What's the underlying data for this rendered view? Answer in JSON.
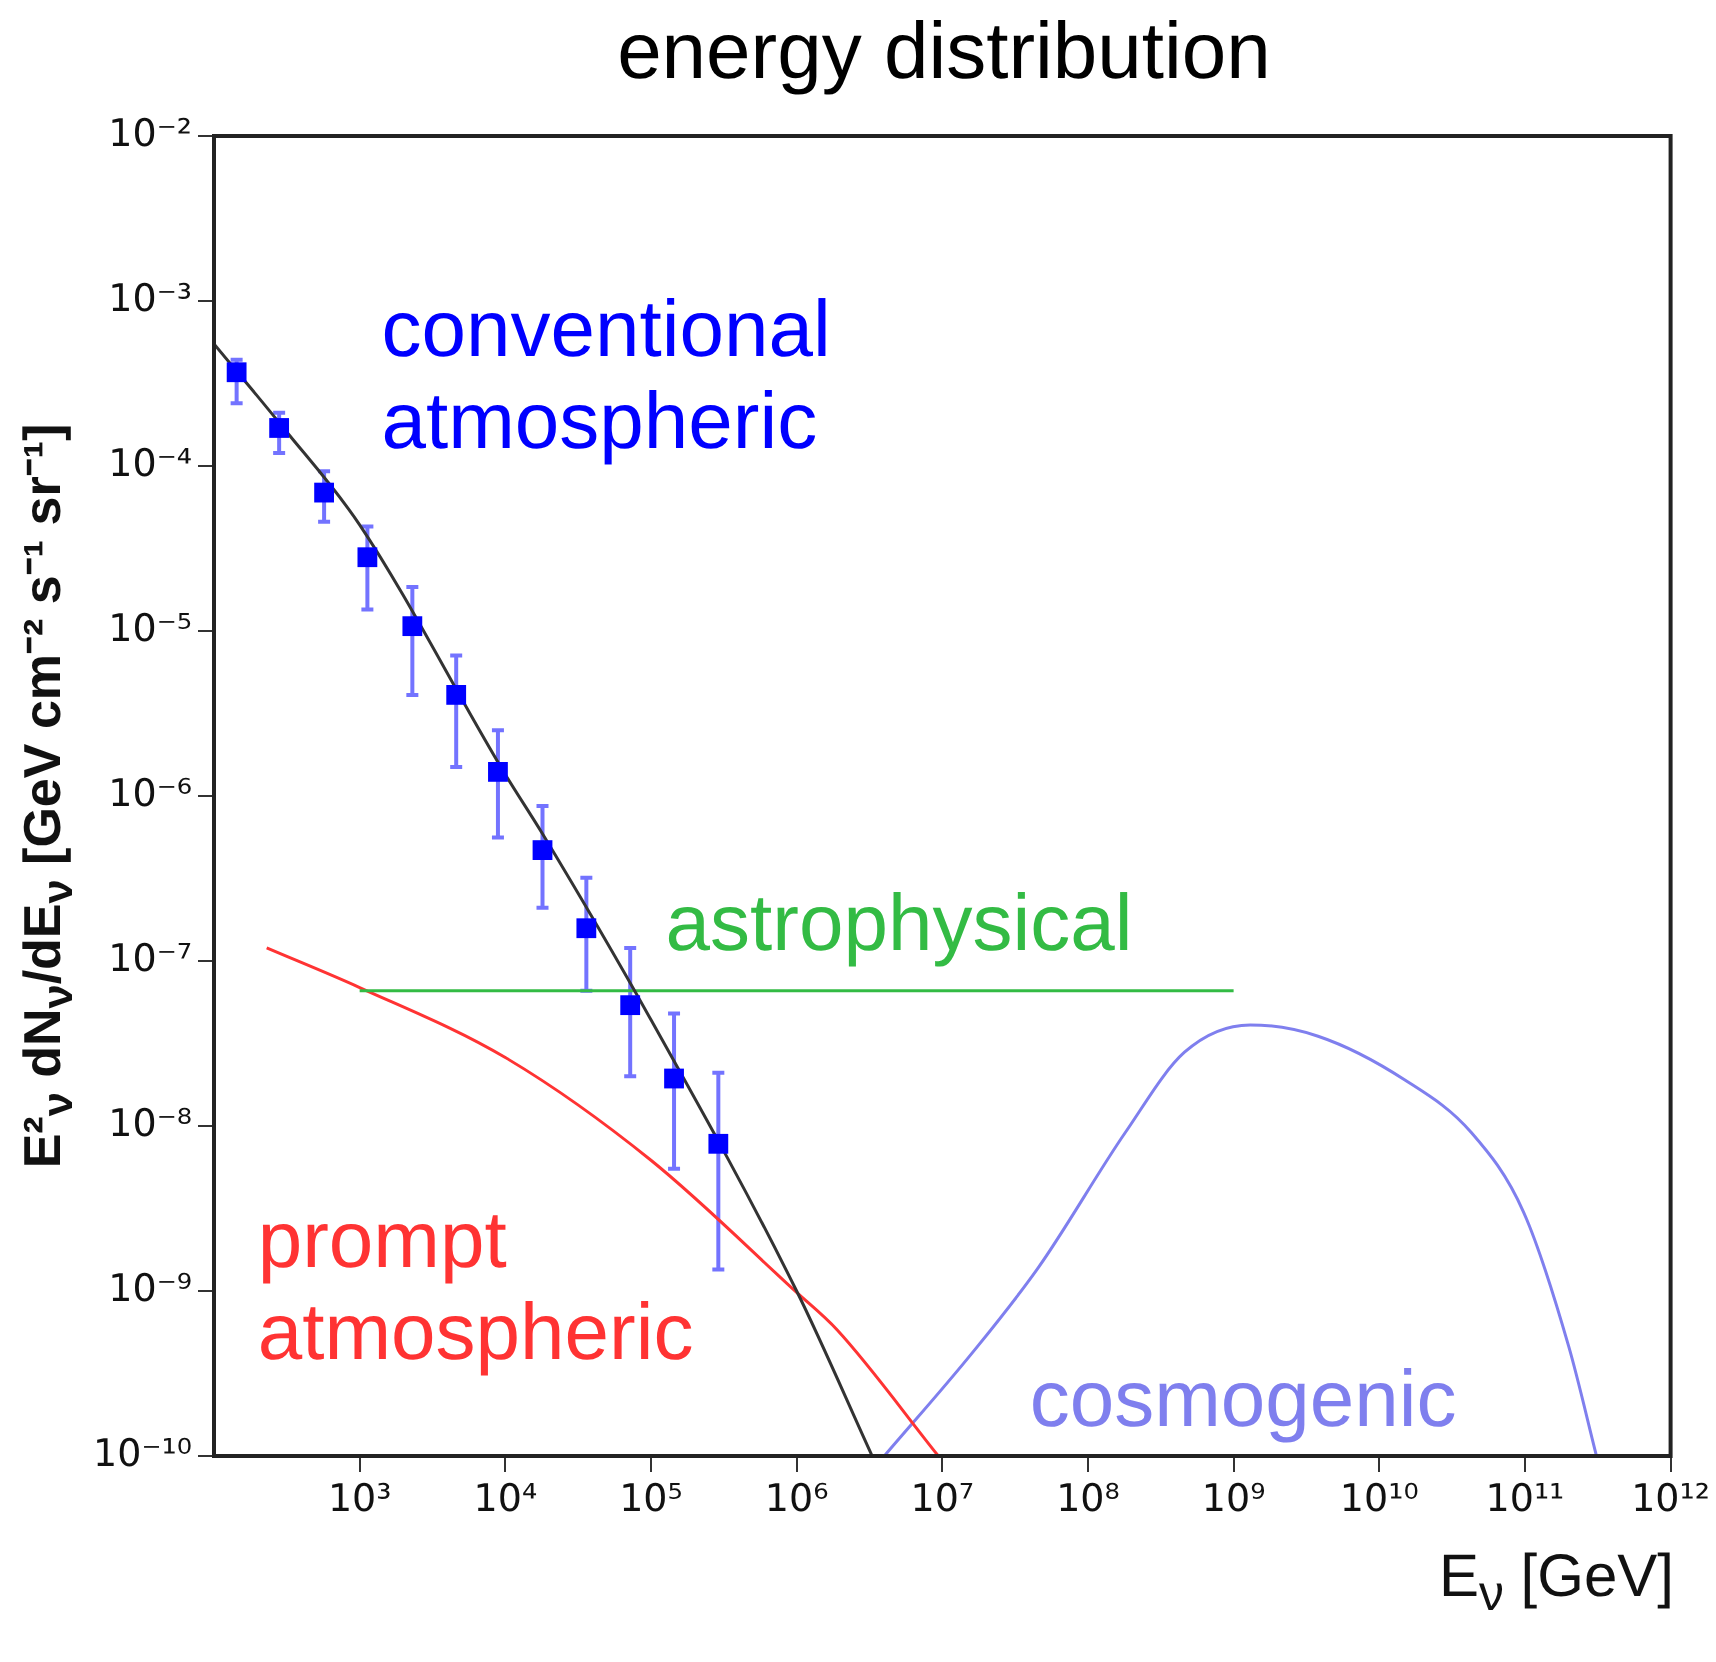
{
  "chart_data": {
    "type": "line",
    "title": "energy distribution",
    "xlabel": "E$_{ν}$ [GeV]",
    "ylabel": "E²$_{ν}$ dN$_{ν}$/dE$_{ν}$ [GeV cm⁻² s⁻¹ sr⁻¹]",
    "log": "xy",
    "grid": false,
    "legend": false,
    "marker": "none",
    "line_style": "solid",
    "xlim": [
      100,
      1000000000000.0
    ],
    "xticks": [
      {
        "value": 1000.0,
        "label": "10³"
      },
      {
        "value": 10000.0,
        "label": "10⁴"
      },
      {
        "value": 100000.0,
        "label": "10⁵"
      },
      {
        "value": 1000000.0,
        "label": "10⁶"
      },
      {
        "value": 10000000.0,
        "label": "10⁷"
      },
      {
        "value": 100000000.0,
        "label": "10⁸"
      },
      {
        "value": 1000000000.0,
        "label": "10⁹"
      },
      {
        "value": 10000000000.0,
        "label": "10¹⁰"
      },
      {
        "value": 100000000000.0,
        "label": "10¹¹"
      },
      {
        "value": 1000000000000.0,
        "label": "10¹²"
      }
    ],
    "ylim": [
      1e-10,
      0.01
    ],
    "yticks": [
      {
        "value": 1e-10,
        "label": "10⁻¹⁰"
      },
      {
        "value": 1e-09,
        "label": "10⁻⁹"
      },
      {
        "value": 1e-08,
        "label": "10⁻⁸"
      },
      {
        "value": 1e-07,
        "label": "10⁻⁷"
      },
      {
        "value": 1e-06,
        "label": "10⁻⁶"
      },
      {
        "value": 1e-05,
        "label": "10⁻⁵"
      },
      {
        "value": 0.0001,
        "label": "10⁻⁴"
      },
      {
        "value": 0.001,
        "label": "10⁻³"
      },
      {
        "value": 0.01,
        "label": "10⁻²"
      }
    ],
    "series": [
      {
        "name": "conventional atmospheric",
        "type": "scatter",
        "marker": "square",
        "color": "#0000ff",
        "x": [
          143,
          280,
          570,
          1130,
          2300,
          4600,
          8900,
          18000,
          36000,
          72000,
          144000,
          290000
        ],
        "values": [
          0.00037,
          0.00017,
          6.9e-05,
          2.8e-05,
          1.07e-05,
          4.1e-06,
          1.4e-06,
          4.7e-07,
          1.58e-07,
          5.4e-08,
          1.94e-08,
          7.8e-09
        ],
        "errors": [
          [
            0.00024,
            0.00044
          ],
          [
            0.00012,
            0.00021
          ],
          [
            4.6e-05,
            9.3e-05
          ],
          [
            1.35e-05,
            4.3e-05
          ],
          [
            4.1e-06,
            1.85e-05
          ],
          [
            1.5e-06,
            7.1e-06
          ],
          [
            5.6e-07,
            2.5e-06
          ],
          [
            2.1e-07,
            8.7e-07
          ],
          [
            6.6e-08,
            3.2e-07
          ],
          [
            2e-08,
            1.2e-07
          ],
          [
            5.5e-09,
            4.8e-08
          ],
          [
            1.35e-09,
            2.1e-08
          ]
        ]
      },
      {
        "color": "#333333",
        "x": [
          100,
          300,
          1000,
          10000,
          18000,
          100000,
          1000000,
          3300000
        ],
        "values": [
          0.00055,
          0.00017,
          4.4e-05,
          1.35e-06,
          5.9e-07,
          4.4e-08,
          1e-09,
          1e-10
        ]
      },
      {
        "name": "astrophysical",
        "color": "#33bb44",
        "x": [
          1000,
          1000000000.0
        ],
        "values": [
          6.6e-08,
          6.6e-08
        ]
      },
      {
        "name": "prompt atmospheric",
        "color": "#ff3333",
        "x": [
          230,
          1000,
          10000,
          100000,
          1000000,
          1900000,
          9400000
        ],
        "values": [
          1.2e-07,
          6.9e-08,
          2.6e-08,
          6.2e-09,
          9.8e-10,
          5.8e-10,
          1e-10
        ]
      },
      {
        "name": "cosmogenic",
        "color": "#7f7fee",
        "x": [
          4000000.0,
          16000000.0,
          46000000.0,
          180000000.0,
          460000000.0,
          1300000000.0,
          3800000000.0,
          15000000000.0,
          43000000000.0,
          98000000000.0,
          200000000000.0,
          310000000000.0
        ],
        "values": [
          1e-10,
          4.2e-10,
          1.4e-09,
          9.1e-09,
          2.8e-08,
          4.1e-08,
          3.5e-08,
          1.9e-08,
          9.1e-09,
          3e-09,
          4.6e-10,
          1e-10
        ]
      }
    ]
  }
}
